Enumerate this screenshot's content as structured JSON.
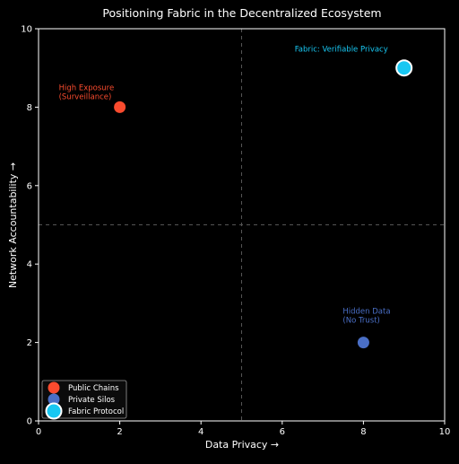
{
  "chart_data": {
    "type": "scatter",
    "title": "Positioning Fabric in the Decentralized Ecosystem",
    "xlabel": "Data Privacy →",
    "ylabel": "Network Accountability →",
    "xlim": [
      0,
      10
    ],
    "ylim": [
      0,
      10
    ],
    "xticks": [
      "0",
      "2",
      "4",
      "6",
      "8",
      "10"
    ],
    "yticks": [
      "0",
      "2",
      "4",
      "6",
      "8",
      "10"
    ],
    "quadrant_lines": {
      "x": 5,
      "y": 5
    },
    "grid": false,
    "legend_placement": "bottom-left",
    "series": [
      {
        "name": "Public Chains",
        "color": "#fa4b2e",
        "x": [
          2
        ],
        "y": [
          8
        ]
      },
      {
        "name": "Private Silos",
        "color": "#4a6fc6",
        "x": [
          8
        ],
        "y": [
          2
        ]
      },
      {
        "name": "Fabric Protocol",
        "color": "#18c7f2",
        "x": [
          9
        ],
        "y": [
          9
        ]
      }
    ],
    "annotations": [
      {
        "lines": [
          "High Exposure",
          "(Surveillance)"
        ],
        "x": 2,
        "y": 8,
        "color": "#fa4b2e",
        "series": 0
      },
      {
        "lines": [
          "Hidden Data",
          "(No Trust)"
        ],
        "x": 8,
        "y": 2,
        "color": "#4a6fc6",
        "series": 1
      },
      {
        "lines": [
          "Fabric: Verifiable Privacy"
        ],
        "x": 9,
        "y": 9,
        "color": "#18c7f2",
        "series": 2
      }
    ]
  }
}
